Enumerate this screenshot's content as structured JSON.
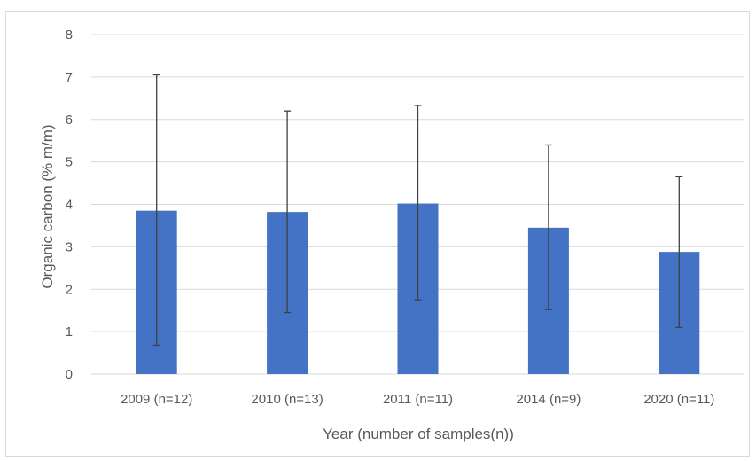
{
  "chart_data": {
    "type": "bar",
    "categories": [
      "2009 (n=12)",
      "2010 (n=13)",
      "2011 (n=11)",
      "2014 (n=9)",
      "2020 (n=11)"
    ],
    "values": [
      3.85,
      3.82,
      4.02,
      3.45,
      2.88
    ],
    "error_low": [
      0.68,
      1.45,
      1.75,
      1.52,
      1.1
    ],
    "error_high": [
      7.05,
      6.2,
      6.33,
      5.4,
      4.65
    ],
    "title": "",
    "xlabel": "Year (number of samples(n))",
    "ylabel": "Organic carbon (% m/m)",
    "ylim": [
      0,
      8
    ],
    "yticks": [
      "0",
      "1",
      "2",
      "3",
      "4",
      "5",
      "6",
      "7",
      "8"
    ],
    "grid": true,
    "legend": "none",
    "colors": {
      "bar": "#4472c4",
      "error_bar": "#404040",
      "grid": "#d9d9d9",
      "text": "#595959"
    }
  }
}
